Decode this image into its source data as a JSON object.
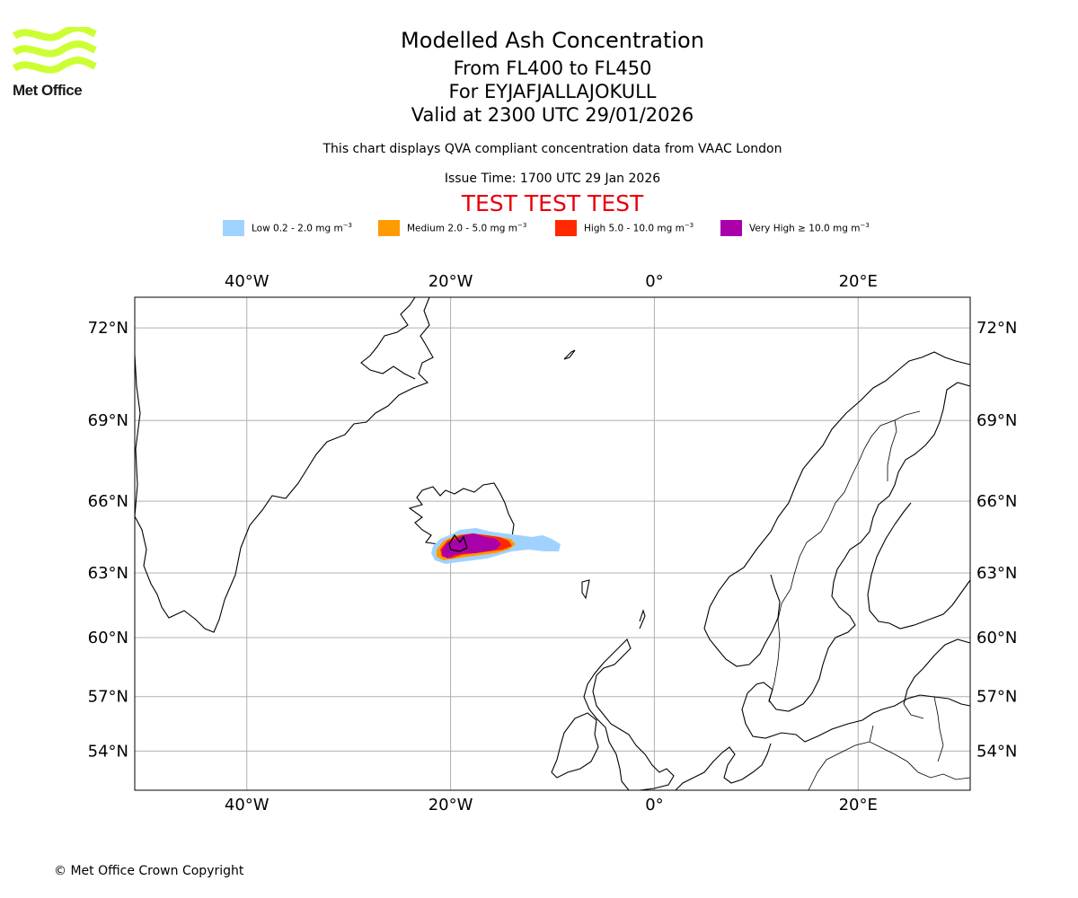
{
  "logo": {
    "text": "Met Office",
    "color": "#ccff33"
  },
  "header": {
    "title": "Modelled Ash Concentration",
    "levels": "From FL400 to FL450",
    "volcano": "For EYJAFJALLAJOKULL",
    "valid": "Valid at 2300 UTC 29/01/2026",
    "qva_note": "This chart displays QVA compliant concentration data from VAAC London",
    "issue_time": "Issue Time: 1700 UTC 29 Jan 2026",
    "test_banner": "TEST TEST TEST",
    "test_color": "#e8000b"
  },
  "legend": [
    {
      "label": "Low 0.2 - 2.0 mg m",
      "sup": "−3",
      "color": "#a0d2ff"
    },
    {
      "label": "Medium 2.0 - 5.0 mg m",
      "sup": "−3",
      "color": "#ff9a00"
    },
    {
      "label": "High 5.0 - 10.0 mg m",
      "sup": "−3",
      "color": "#ff2800"
    },
    {
      "label": "Very High ≥ 10.0 mg m",
      "sup": "−3",
      "color": "#aa00aa"
    }
  ],
  "map": {
    "lon_range": [
      -51,
      31
    ],
    "lat_range": [
      51.7,
      72.9
    ],
    "lon_ticks": [
      {
        "lon": -40,
        "label": "40°W"
      },
      {
        "lon": -20,
        "label": "20°W"
      },
      {
        "lon": 0,
        "label": "0°"
      },
      {
        "lon": 20,
        "label": "20°E"
      }
    ],
    "lat_ticks": [
      {
        "lat": 72,
        "label": "72°N"
      },
      {
        "lat": 69,
        "label": "69°N"
      },
      {
        "lat": 66,
        "label": "66°N"
      },
      {
        "lat": 63,
        "label": "63°N"
      },
      {
        "lat": 60,
        "label": "60°N"
      },
      {
        "lat": 57,
        "label": "57°N"
      },
      {
        "lat": 54,
        "label": "54°N"
      }
    ],
    "ash_plume_center": {
      "lon": -18.5,
      "lat": 63.7
    }
  },
  "footer": {
    "copyright": "© Met Office Crown Copyright"
  }
}
